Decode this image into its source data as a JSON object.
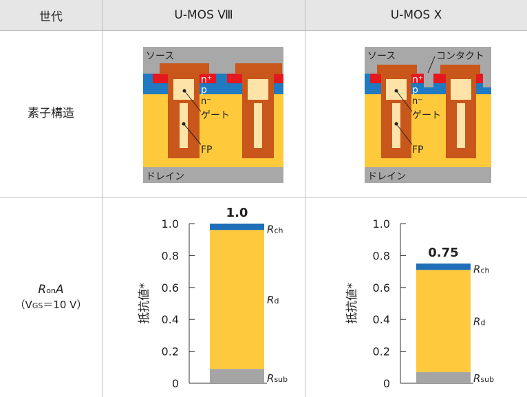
{
  "header": {
    "col0": "世代",
    "col1": "U-MOS Ⅷ",
    "col2": "U-MOS Ⅹ"
  },
  "rows": {
    "structure_label": "素子構造",
    "resistance_label_R": "R",
    "resistance_label_on": "on",
    "resistance_label_A": "A",
    "resistance_cond_open": "（V",
    "resistance_cond_sub": "GS",
    "resistance_cond_rest": "＝10 V）"
  },
  "structure": {
    "source": "ソース",
    "contact": "コンタクト",
    "nplus": "n⁺",
    "p": "p",
    "nminus": "n⁻",
    "gate": "ゲート",
    "fp": "FP",
    "drain": "ドレイン"
  },
  "colors": {
    "metal_gray": "#a8a8a8",
    "poly_orange": "#c9561a",
    "gate_cream": "#fde3a7",
    "nplus_red": "#e5171f",
    "p_blue": "#1f7ac2",
    "nminus_yellow": "#ffc93c",
    "rch_blue": "#1f6fb8",
    "rd_yellow": "#fec93d",
    "rsub_gray": "#a5a5a5"
  },
  "chart_data": [
    {
      "type": "bar",
      "generation": "U-MOS Ⅷ",
      "ylabel": "抵抗値*",
      "ylim": [
        0,
        1.0
      ],
      "yticks": [
        "0",
        "0.2",
        "0.4",
        "0.6",
        "0.8",
        "1.0"
      ],
      "total_label": "1.0",
      "total": 1.0,
      "segments": [
        {
          "name": "R",
          "sub": "sub",
          "value": 0.09
        },
        {
          "name": "R",
          "sub": "d",
          "value": 0.87
        },
        {
          "name": "R",
          "sub": "ch",
          "value": 0.04
        }
      ]
    },
    {
      "type": "bar",
      "generation": "U-MOS Ⅹ",
      "ylabel": "抵抗値*",
      "ylim": [
        0,
        1.0
      ],
      "yticks": [
        "0",
        "0.2",
        "0.4",
        "0.6",
        "0.8",
        "1.0"
      ],
      "total_label": "0.75",
      "total": 0.75,
      "segments": [
        {
          "name": "R",
          "sub": "sub",
          "value": 0.07
        },
        {
          "name": "R",
          "sub": "d",
          "value": 0.64
        },
        {
          "name": "R",
          "sub": "ch",
          "value": 0.04
        }
      ]
    }
  ]
}
